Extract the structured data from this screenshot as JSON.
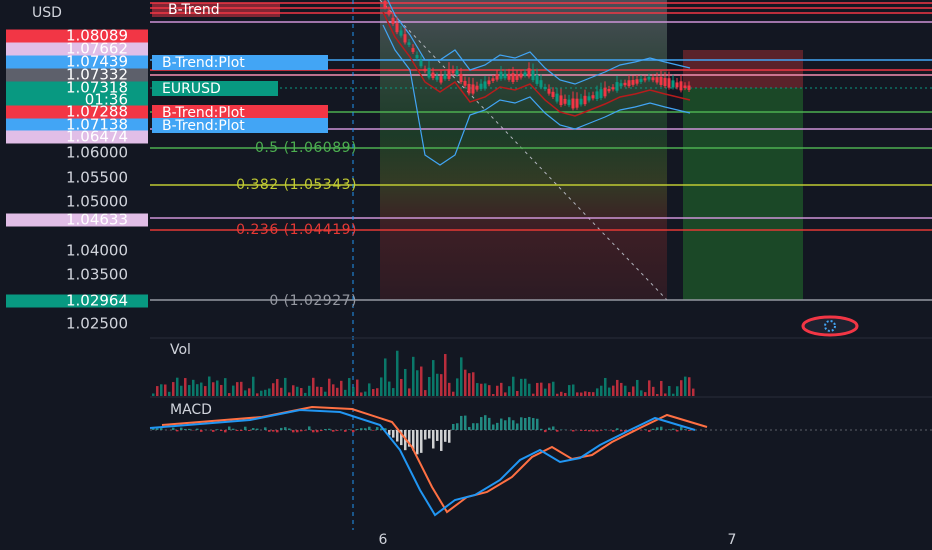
{
  "price_scale": {
    "currency": "USD",
    "labels": [
      "1.06000",
      "1.05500",
      "1.05000",
      "1.04000",
      "1.03500",
      "1.02500"
    ]
  },
  "price_tags": [
    {
      "text": "1.08089"
    },
    {
      "text": "1.07662"
    },
    {
      "text": "1.07439"
    },
    {
      "text": "1.07332"
    },
    {
      "text": "1.07318",
      "countdown": "01:36"
    },
    {
      "text": "1.07288"
    },
    {
      "text": "1.07138"
    },
    {
      "text": "1.06474"
    },
    {
      "text": "1.04633"
    },
    {
      "text": "1.02964"
    }
  ],
  "chart_tags": [
    "B-Trend",
    "B-Trend:Plot",
    "EURUSD",
    "B-Trend:Plot",
    "B-Trend:Plot"
  ],
  "fib_levels": [
    "0.5 (1.06089)",
    "0.382 (1.05343)",
    "0.236 (1.04419)",
    "0 (1.02927)"
  ],
  "panes": [
    "Vol",
    "MACD"
  ],
  "time_axis": [
    "6",
    "7"
  ]
}
